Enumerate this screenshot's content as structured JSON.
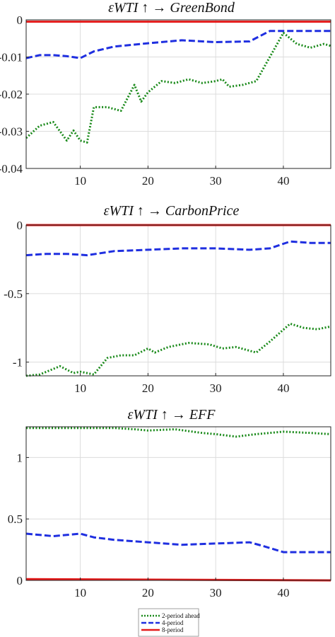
{
  "colors": {
    "two_period": "#1a8a1a",
    "four_period": "#1f2fe0",
    "eight_period": "#e41a1a",
    "grid": "#dcdcdc",
    "axis": "#262626"
  },
  "legend": {
    "entries": [
      "2-period ahead",
      "4-period",
      "8-period"
    ]
  },
  "chart_data": [
    {
      "type": "line",
      "title": "εWTI ↑ →  GreenBond",
      "xlim": [
        2,
        47
      ],
      "ylim": [
        -0.04,
        0
      ],
      "xticks": [
        10,
        20,
        30,
        40
      ],
      "xtick_labels": [
        "10",
        "20",
        "30",
        "40"
      ],
      "yticks": [
        0,
        -0.01,
        -0.02,
        -0.03,
        -0.04
      ],
      "ytick_labels": [
        "0",
        "-0.01",
        "-0.02",
        "-0.03",
        "-0.04"
      ],
      "show_xtick_labels": true,
      "grid": true,
      "series": [
        {
          "name": "2-period ahead",
          "x": [
            2,
            4,
            6,
            8,
            9,
            10,
            11,
            12,
            14,
            16,
            18,
            19,
            20,
            22,
            24,
            26,
            28,
            30,
            31,
            32,
            34,
            36,
            38,
            40,
            42,
            44,
            46,
            47
          ],
          "y": [
            -0.0318,
            -0.0285,
            -0.0275,
            -0.0325,
            -0.0298,
            -0.0325,
            -0.033,
            -0.0235,
            -0.0235,
            -0.0245,
            -0.0175,
            -0.022,
            -0.0195,
            -0.0165,
            -0.017,
            -0.016,
            -0.017,
            -0.0165,
            -0.016,
            -0.018,
            -0.0175,
            -0.0165,
            -0.01,
            -0.0035,
            -0.0065,
            -0.0075,
            -0.0065,
            -0.007
          ]
        },
        {
          "name": "4-period",
          "x": [
            2,
            4,
            6,
            8,
            10,
            12,
            15,
            20,
            25,
            30,
            35,
            38,
            40,
            42,
            44,
            47
          ],
          "y": [
            -0.0103,
            -0.0095,
            -0.0095,
            -0.0098,
            -0.0103,
            -0.0085,
            -0.0072,
            -0.0063,
            -0.0055,
            -0.006,
            -0.0058,
            -0.003,
            -0.003,
            -0.003,
            -0.003,
            -0.003
          ]
        },
        {
          "name": "8-period",
          "x": [
            2,
            47
          ],
          "y": [
            -0.0005,
            -0.0005
          ]
        }
      ]
    },
    {
      "type": "line",
      "title": "εWTI ↑ →  CarbonPrice",
      "xlim": [
        2,
        47
      ],
      "ylim": [
        -1.1,
        0
      ],
      "xticks": [
        10,
        20,
        30,
        40
      ],
      "xtick_labels": [
        "10",
        "20",
        "30",
        "40"
      ],
      "yticks": [
        0,
        -0.5,
        -1
      ],
      "ytick_labels": [
        "0",
        "-0.5",
        "-1"
      ],
      "show_xtick_labels": true,
      "grid": true,
      "series": [
        {
          "name": "2-period ahead",
          "x": [
            2,
            4,
            7,
            9,
            10,
            11,
            12,
            14,
            16,
            18,
            20,
            21,
            23,
            26,
            29,
            31,
            33,
            36,
            38,
            41,
            43,
            45,
            47
          ],
          "y": [
            -1.1,
            -1.09,
            -1.03,
            -1.08,
            -1.07,
            -1.08,
            -1.09,
            -0.97,
            -0.95,
            -0.95,
            -0.9,
            -0.93,
            -0.89,
            -0.86,
            -0.87,
            -0.9,
            -0.89,
            -0.93,
            -0.85,
            -0.72,
            -0.75,
            -0.76,
            -0.74
          ]
        },
        {
          "name": "4-period",
          "x": [
            2,
            5,
            8,
            11,
            15,
            20,
            25,
            30,
            35,
            38,
            41,
            44,
            47
          ],
          "y": [
            -0.22,
            -0.21,
            -0.21,
            -0.22,
            -0.19,
            -0.18,
            -0.17,
            -0.17,
            -0.18,
            -0.17,
            -0.12,
            -0.13,
            -0.13
          ]
        },
        {
          "name": "8-period",
          "x": [
            2,
            47
          ],
          "y": [
            0,
            0
          ]
        }
      ]
    },
    {
      "type": "line",
      "title": "εWTI ↑ →  EFF",
      "xlim": [
        2,
        47
      ],
      "ylim": [
        0,
        1.25
      ],
      "xticks": [
        10,
        20,
        30,
        40
      ],
      "xtick_labels": [
        "10",
        "20",
        "30",
        "40"
      ],
      "yticks": [
        0,
        0.5,
        1
      ],
      "ytick_labels": [
        "0",
        "0.5",
        "1"
      ],
      "show_xtick_labels": true,
      "grid": true,
      "series": [
        {
          "name": "2-period ahead",
          "x": [
            2,
            5,
            8,
            11,
            15,
            18,
            20,
            24,
            28,
            30,
            33,
            36,
            40,
            44,
            47
          ],
          "y": [
            1.24,
            1.24,
            1.24,
            1.24,
            1.24,
            1.23,
            1.22,
            1.23,
            1.2,
            1.19,
            1.17,
            1.19,
            1.21,
            1.2,
            1.19
          ]
        },
        {
          "name": "4-period",
          "x": [
            2,
            4,
            6,
            8,
            10,
            12,
            15,
            20,
            25,
            30,
            35,
            37,
            40,
            42,
            44,
            47
          ],
          "y": [
            0.38,
            0.37,
            0.36,
            0.37,
            0.38,
            0.35,
            0.33,
            0.31,
            0.29,
            0.3,
            0.31,
            0.28,
            0.23,
            0.23,
            0.23,
            0.23
          ]
        },
        {
          "name": "8-period",
          "x": [
            2,
            47
          ],
          "y": [
            0.01,
            0
          ]
        }
      ]
    }
  ]
}
